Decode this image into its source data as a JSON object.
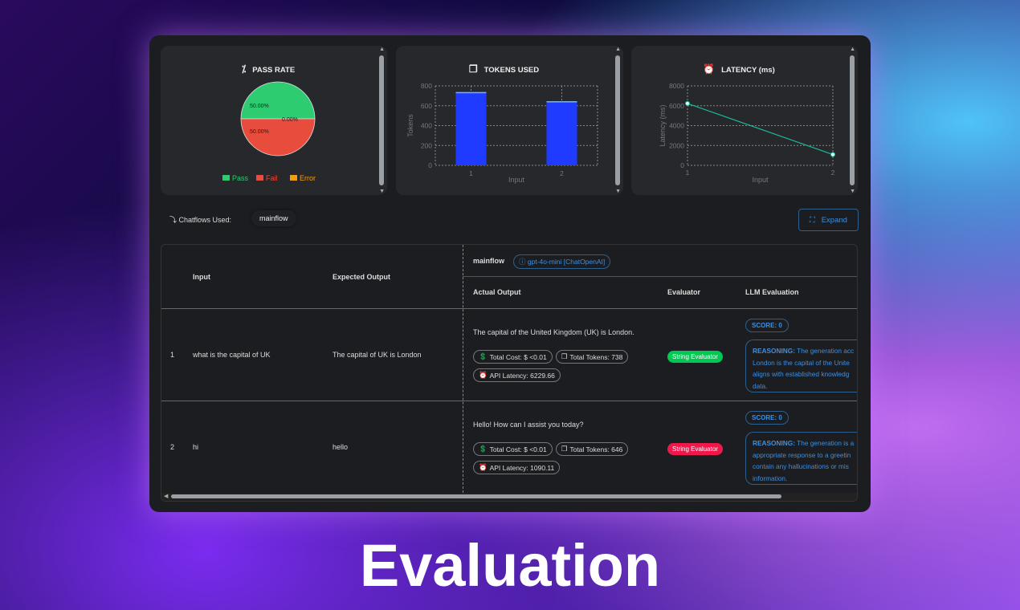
{
  "panels": {
    "pass_rate": {
      "title": "PASS RATE",
      "icon": "percent-icon"
    },
    "tokens": {
      "title": "TOKENS USED",
      "icon": "copy-icon"
    },
    "latency": {
      "title": "LATENCY (ms)",
      "icon": "alarm-clock-icon"
    }
  },
  "chart_data": [
    {
      "type": "pie",
      "title": "PASS RATE",
      "slices": [
        {
          "label": "Pass",
          "value": 50.0,
          "text": "50.00%",
          "color": "#2ecc71"
        },
        {
          "label": "Fail",
          "value": 50.0,
          "text": "50.00%",
          "color": "#e74c3c"
        },
        {
          "label": "Error",
          "value": 0.0,
          "text": "0.00%",
          "color": "#f39c12"
        }
      ],
      "legend": "bottom"
    },
    {
      "type": "bar",
      "title": "TOKENS USED",
      "categories": [
        "1",
        "2"
      ],
      "values": [
        738,
        646
      ],
      "xlabel": "Input",
      "ylabel": "Tokens",
      "ylim": [
        0,
        800
      ],
      "yticks": [
        "0",
        "200",
        "400",
        "600",
        "800"
      ],
      "color": "#1e3bff",
      "grid": true
    },
    {
      "type": "line",
      "title": "LATENCY (ms)",
      "x": [
        "1",
        "2"
      ],
      "values": [
        6229.66,
        1090.11
      ],
      "xlabel": "Input",
      "ylabel": "Latency (ms)",
      "ylim": [
        0,
        8000
      ],
      "yticks": [
        "0",
        "2000",
        "4000",
        "6000",
        "8000"
      ],
      "color": "#1abc9c",
      "grid": true
    }
  ],
  "chatflows": {
    "label": "Chatflows Used:",
    "value": "mainflow"
  },
  "expand_label": "Expand",
  "table": {
    "headers": {
      "input": "Input",
      "expected": "Expected Output",
      "flow": "mainflow",
      "model": "gpt-4o-mini [ChatOpenAI]",
      "actual": "Actual Output",
      "evaluator": "Evaluator",
      "llm": "LLM Evaluation"
    },
    "rows": [
      {
        "index": "1",
        "input": "what is the capital of UK",
        "expected": "The capital of UK is London",
        "actual": "The capital of the United Kingdom (UK) is London.",
        "cost": "Total Cost: $ <0.01",
        "tokens": "Total Tokens: 738",
        "latency": "API Latency: 6229.66",
        "evaluator": "String Evaluator",
        "evaluator_color": "#00c853",
        "score": "SCORE: 0",
        "reasoning_label": "REASONING:",
        "reasoning": [
          "The generation acc",
          "London is the capital of the Unite",
          "aligns with established knowledg",
          "data."
        ]
      },
      {
        "index": "2",
        "input": "hi",
        "expected": "hello",
        "actual": "Hello! How can I assist you today?",
        "cost": "Total Cost: $ <0.01",
        "tokens": "Total Tokens: 646",
        "latency": "API Latency: 1090.11",
        "evaluator": "String Evaluator",
        "evaluator_color": "#f0184a",
        "score": "SCORE: 0",
        "reasoning_label": "REASONING:",
        "reasoning": [
          "The generation is a",
          "appropriate response to a greetin",
          "contain any hallucinations or mis",
          "information."
        ]
      }
    ]
  },
  "caption": "Evaluation"
}
